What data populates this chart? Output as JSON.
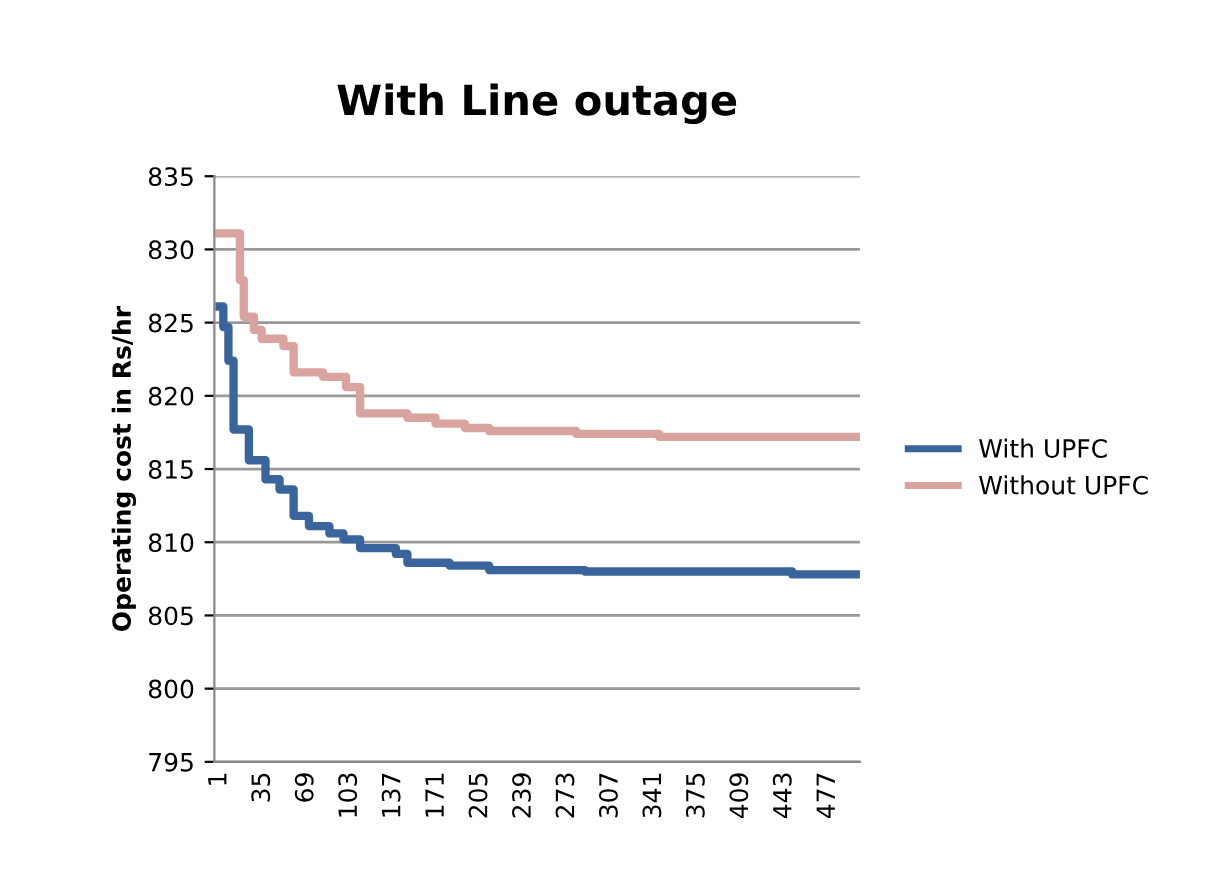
{
  "chart_data": {
    "type": "step",
    "title": "With Line outage",
    "ylabel": "Operating cost in Rs/hr",
    "series": [
      {
        "name": "With UPFC",
        "color": "#3a659c",
        "x": [
          1,
          4,
          8,
          12,
          24,
          37,
          48,
          59,
          71,
          87,
          98,
          111,
          139,
          148,
          181,
          212,
          287,
          449,
          500
        ],
        "values": [
          826.1,
          824.7,
          822.4,
          817.7,
          815.6,
          814.3,
          813.6,
          811.8,
          811.1,
          810.6,
          810.2,
          809.6,
          809.2,
          808.6,
          808.4,
          808.1,
          808.0,
          807.8,
          807.8
        ]
      },
      {
        "name": "Without UPFC",
        "color": "#d9a3a0",
        "x": [
          1,
          17,
          20,
          28,
          34,
          51,
          59,
          82,
          100,
          111,
          148,
          170,
          193,
          212,
          280,
          345,
          500
        ],
        "values": [
          831.1,
          827.9,
          825.4,
          824.5,
          823.9,
          823.4,
          821.6,
          821.3,
          820.6,
          818.8,
          818.5,
          818.1,
          817.8,
          817.6,
          817.4,
          817.2,
          817.2
        ]
      }
    ],
    "xlim": [
      -3,
      502
    ],
    "xticks": [
      1,
      35,
      69,
      103,
      137,
      171,
      205,
      239,
      273,
      307,
      341,
      375,
      409,
      443,
      477
    ],
    "ylim": [
      795,
      835
    ],
    "yticks": [
      795,
      800,
      805,
      810,
      815,
      820,
      825,
      830,
      835
    ],
    "grid": "y",
    "legend": "right",
    "marker": "none",
    "line_style": "solid"
  }
}
